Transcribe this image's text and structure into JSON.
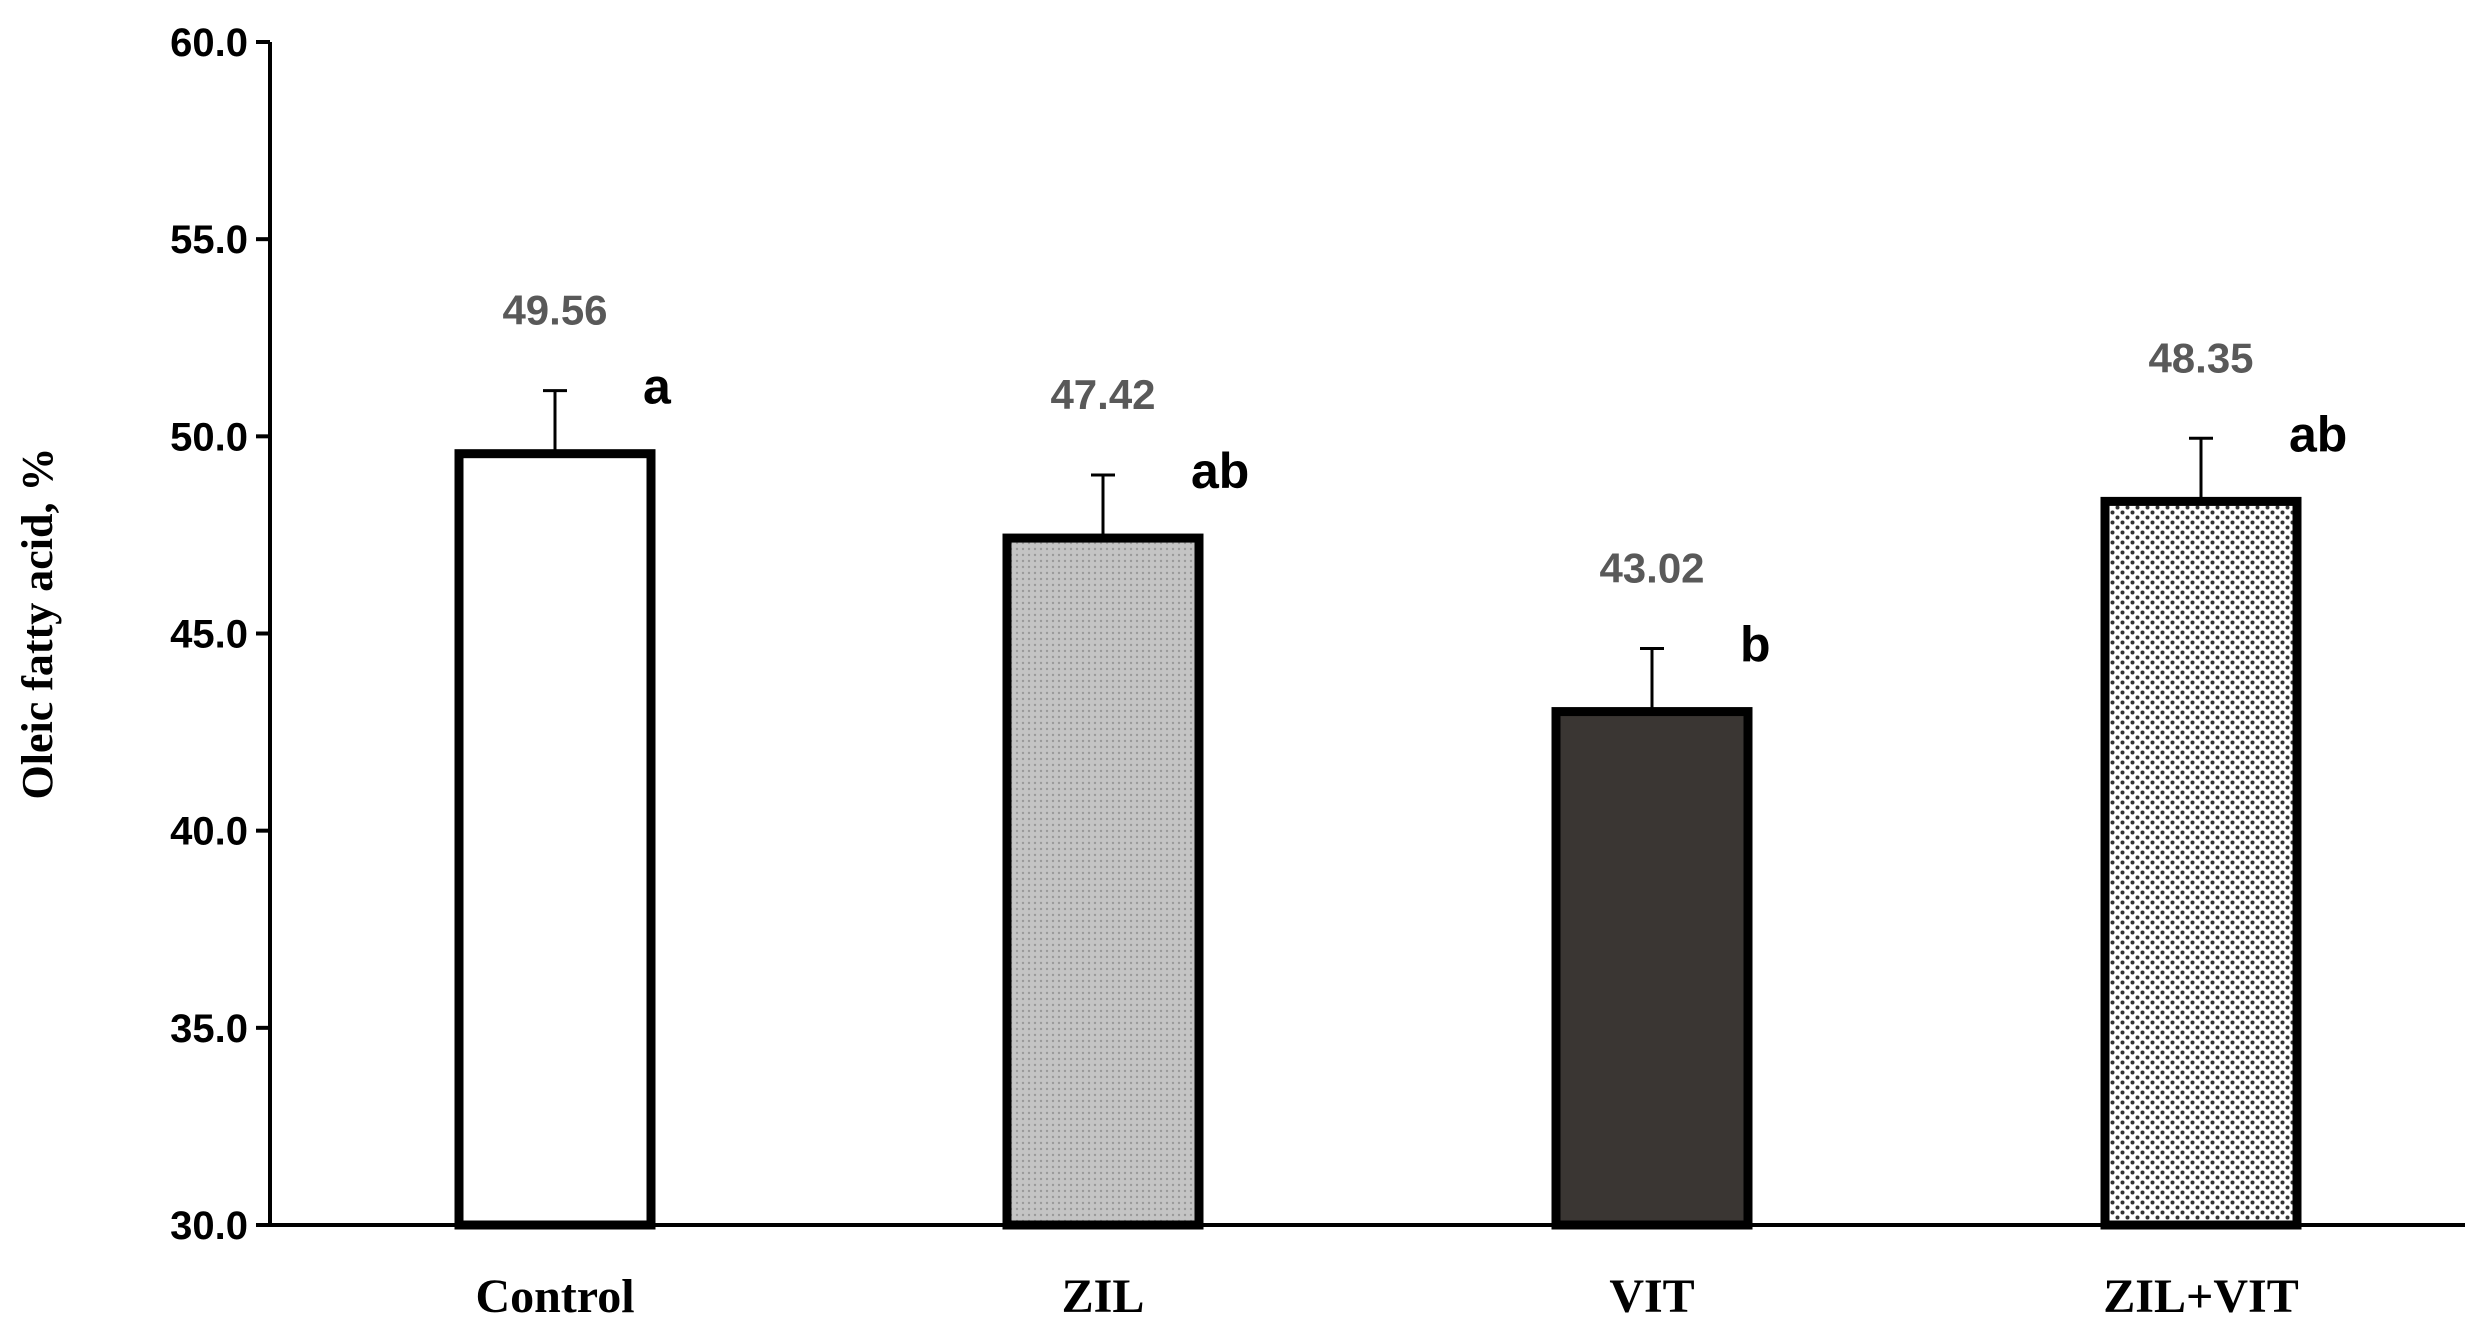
{
  "chart_data": {
    "type": "bar",
    "title": "",
    "xlabel": "",
    "ylabel": "Oleic fatty acid, %",
    "ylim": [
      30.0,
      60.0
    ],
    "yticks": [
      "30.0",
      "35.0",
      "40.0",
      "45.0",
      "50.0",
      "55.0",
      "60.0"
    ],
    "grid": false,
    "categories": [
      "Control",
      "ZIL",
      "VIT",
      "ZIL+VIT"
    ],
    "values": [
      49.56,
      47.42,
      43.02,
      48.35
    ],
    "value_labels": [
      "49.56",
      "47.42",
      "43.02",
      "48.35"
    ],
    "error_upper": [
      1.6,
      1.6,
      1.6,
      1.6
    ],
    "significance_letters": [
      "a",
      "ab",
      "b",
      "ab"
    ],
    "bar_styles": [
      {
        "fill": "#ffffff",
        "pattern": "none"
      },
      {
        "fill": "#bfbfbf",
        "pattern": "fine-dots"
      },
      {
        "fill": "#3a3633",
        "pattern": "none"
      },
      {
        "fill": "#ffffff",
        "pattern": "dots"
      }
    ],
    "colors": {
      "axis": "#000000",
      "bar_edge": "#000000",
      "value_label": "#595959"
    }
  }
}
